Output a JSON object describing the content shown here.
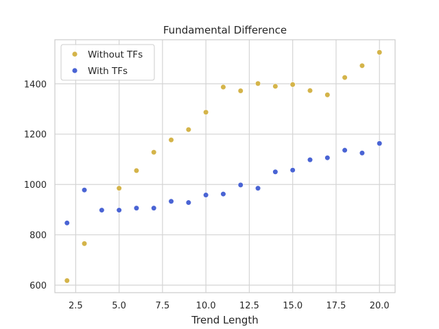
{
  "chart_data": {
    "type": "scatter",
    "title": "Fundamental Difference",
    "xlabel": "Trend Length",
    "ylabel": "",
    "xlim": [
      1.3,
      20.9
    ],
    "ylim": [
      570,
      1575
    ],
    "xticks": [
      2.5,
      5.0,
      7.5,
      10.0,
      12.5,
      15.0,
      17.5,
      20.0
    ],
    "xtick_labels": [
      "2.5",
      "5.0",
      "7.5",
      "10.0",
      "12.5",
      "15.0",
      "17.5",
      "20.0"
    ],
    "yticks": [
      600,
      800,
      1000,
      1200,
      1400
    ],
    "ytick_labels": [
      "600",
      "800",
      "1000",
      "1200",
      "1400"
    ],
    "grid": true,
    "legend_position": "top-left",
    "series": [
      {
        "name": "Without TFs",
        "color": "#d4b44a",
        "x": [
          2,
          3,
          5,
          6,
          7,
          8,
          9,
          10,
          11,
          12,
          13,
          14,
          15,
          16,
          17,
          18,
          19,
          20
        ],
        "y": [
          618,
          765,
          985,
          1055,
          1128,
          1177,
          1218,
          1287,
          1387,
          1372,
          1401,
          1390,
          1397,
          1373,
          1356,
          1425,
          1472,
          1525
        ]
      },
      {
        "name": "With TFs",
        "color": "#4a64d4",
        "x": [
          2,
          3,
          4,
          5,
          6,
          7,
          8,
          9,
          10,
          11,
          12,
          13,
          14,
          15,
          16,
          17,
          18,
          19,
          20
        ],
        "y": [
          847,
          978,
          898,
          898,
          906,
          906,
          933,
          928,
          958,
          962,
          998,
          985,
          1050,
          1057,
          1098,
          1106,
          1136,
          1125,
          1163
        ]
      }
    ]
  }
}
